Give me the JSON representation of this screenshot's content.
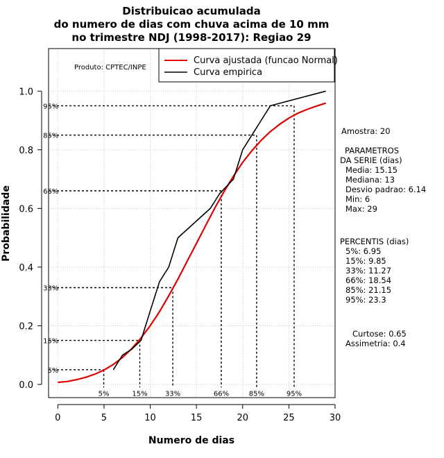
{
  "chart_data": {
    "type": "line",
    "title": [
      "Distribuicao acumulada",
      "do numero de dias com chuva acima de 10 mm",
      "no trimestre NDJ (1998-2017): Regiao 29"
    ],
    "xlabel": "Numero de dias",
    "ylabel": "Probabilidade",
    "xlim": [
      -1,
      30
    ],
    "ylim": [
      -0.045,
      1.145
    ],
    "x_ticks": [
      0,
      5,
      10,
      15,
      20,
      25,
      30
    ],
    "y_ticks": [
      0.0,
      0.2,
      0.4,
      0.6,
      0.8,
      1.0
    ],
    "x_tick_labels": [
      "0",
      "5",
      "10",
      "15",
      "20",
      "25",
      "30"
    ],
    "y_tick_labels": [
      "0.0",
      "0.2",
      "0.4",
      "0.6",
      "0.8",
      "1.0"
    ],
    "grid": true,
    "product_label": "Produto: CPTEC/INPE",
    "legend": {
      "position": "top-right",
      "entries": [
        {
          "label": "Curva ajustada (funcao Normal)",
          "color": "#dd0000"
        },
        {
          "label": "Curva empirica",
          "color": "#000000"
        }
      ]
    },
    "series": [
      {
        "name": "Curva ajustada (funcao Normal)",
        "color": "#dd0000",
        "x": [
          0,
          1,
          2,
          3,
          4,
          5,
          6,
          7,
          8,
          9,
          10,
          11,
          12,
          13,
          14,
          15,
          16,
          17,
          18,
          19,
          20,
          21,
          22,
          23,
          24,
          25,
          26,
          27,
          28,
          29
        ],
        "y": [
          0.007,
          0.01,
          0.016,
          0.024,
          0.035,
          0.049,
          0.068,
          0.092,
          0.122,
          0.158,
          0.2,
          0.248,
          0.302,
          0.359,
          0.42,
          0.481,
          0.542,
          0.602,
          0.658,
          0.71,
          0.757,
          0.797,
          0.832,
          0.862,
          0.887,
          0.908,
          0.925,
          0.938,
          0.949,
          0.959
        ]
      },
      {
        "name": "Curva empirica",
        "color": "#000000",
        "x": [
          6,
          7,
          8,
          9,
          10,
          11,
          12,
          13,
          16.5,
          17.5,
          19,
          20,
          21,
          23,
          29
        ],
        "y": [
          0.05,
          0.1,
          0.12,
          0.15,
          0.25,
          0.35,
          0.4,
          0.5,
          0.6,
          0.65,
          0.7,
          0.8,
          0.85,
          0.95,
          1.0
        ]
      }
    ],
    "percentile_lines": [
      {
        "label": "5%",
        "x": 4.97,
        "y": 0.05
      },
      {
        "label": "15%",
        "x": 8.87,
        "y": 0.15
      },
      {
        "label": "33%",
        "x": 12.44,
        "y": 0.33
      },
      {
        "label": "66%",
        "x": 17.69,
        "y": 0.66
      },
      {
        "label": "85%",
        "x": 21.51,
        "y": 0.85
      },
      {
        "label": "95%",
        "x": 25.57,
        "y": 0.95
      }
    ],
    "side_panel": {
      "amostra": "Amostra: 20",
      "param_title_1": "PARAMETROS",
      "param_title_2": "DA SERIE (dias)",
      "params": [
        "Media: 15.15",
        "Mediana: 13",
        "Desvio padrao: 6.14",
        "Min: 6",
        "Max: 29"
      ],
      "percentis_title": "PERCENTIS (dias)",
      "percentis": [
        "5%: 6.95",
        "15%: 9.85",
        "33%: 11.27",
        "66%: 18.54",
        "85%: 21.15",
        "95%: 23.3"
      ],
      "curtose": "Curtose: 0.65",
      "assimetria": "Assimetria: 0.4"
    }
  }
}
